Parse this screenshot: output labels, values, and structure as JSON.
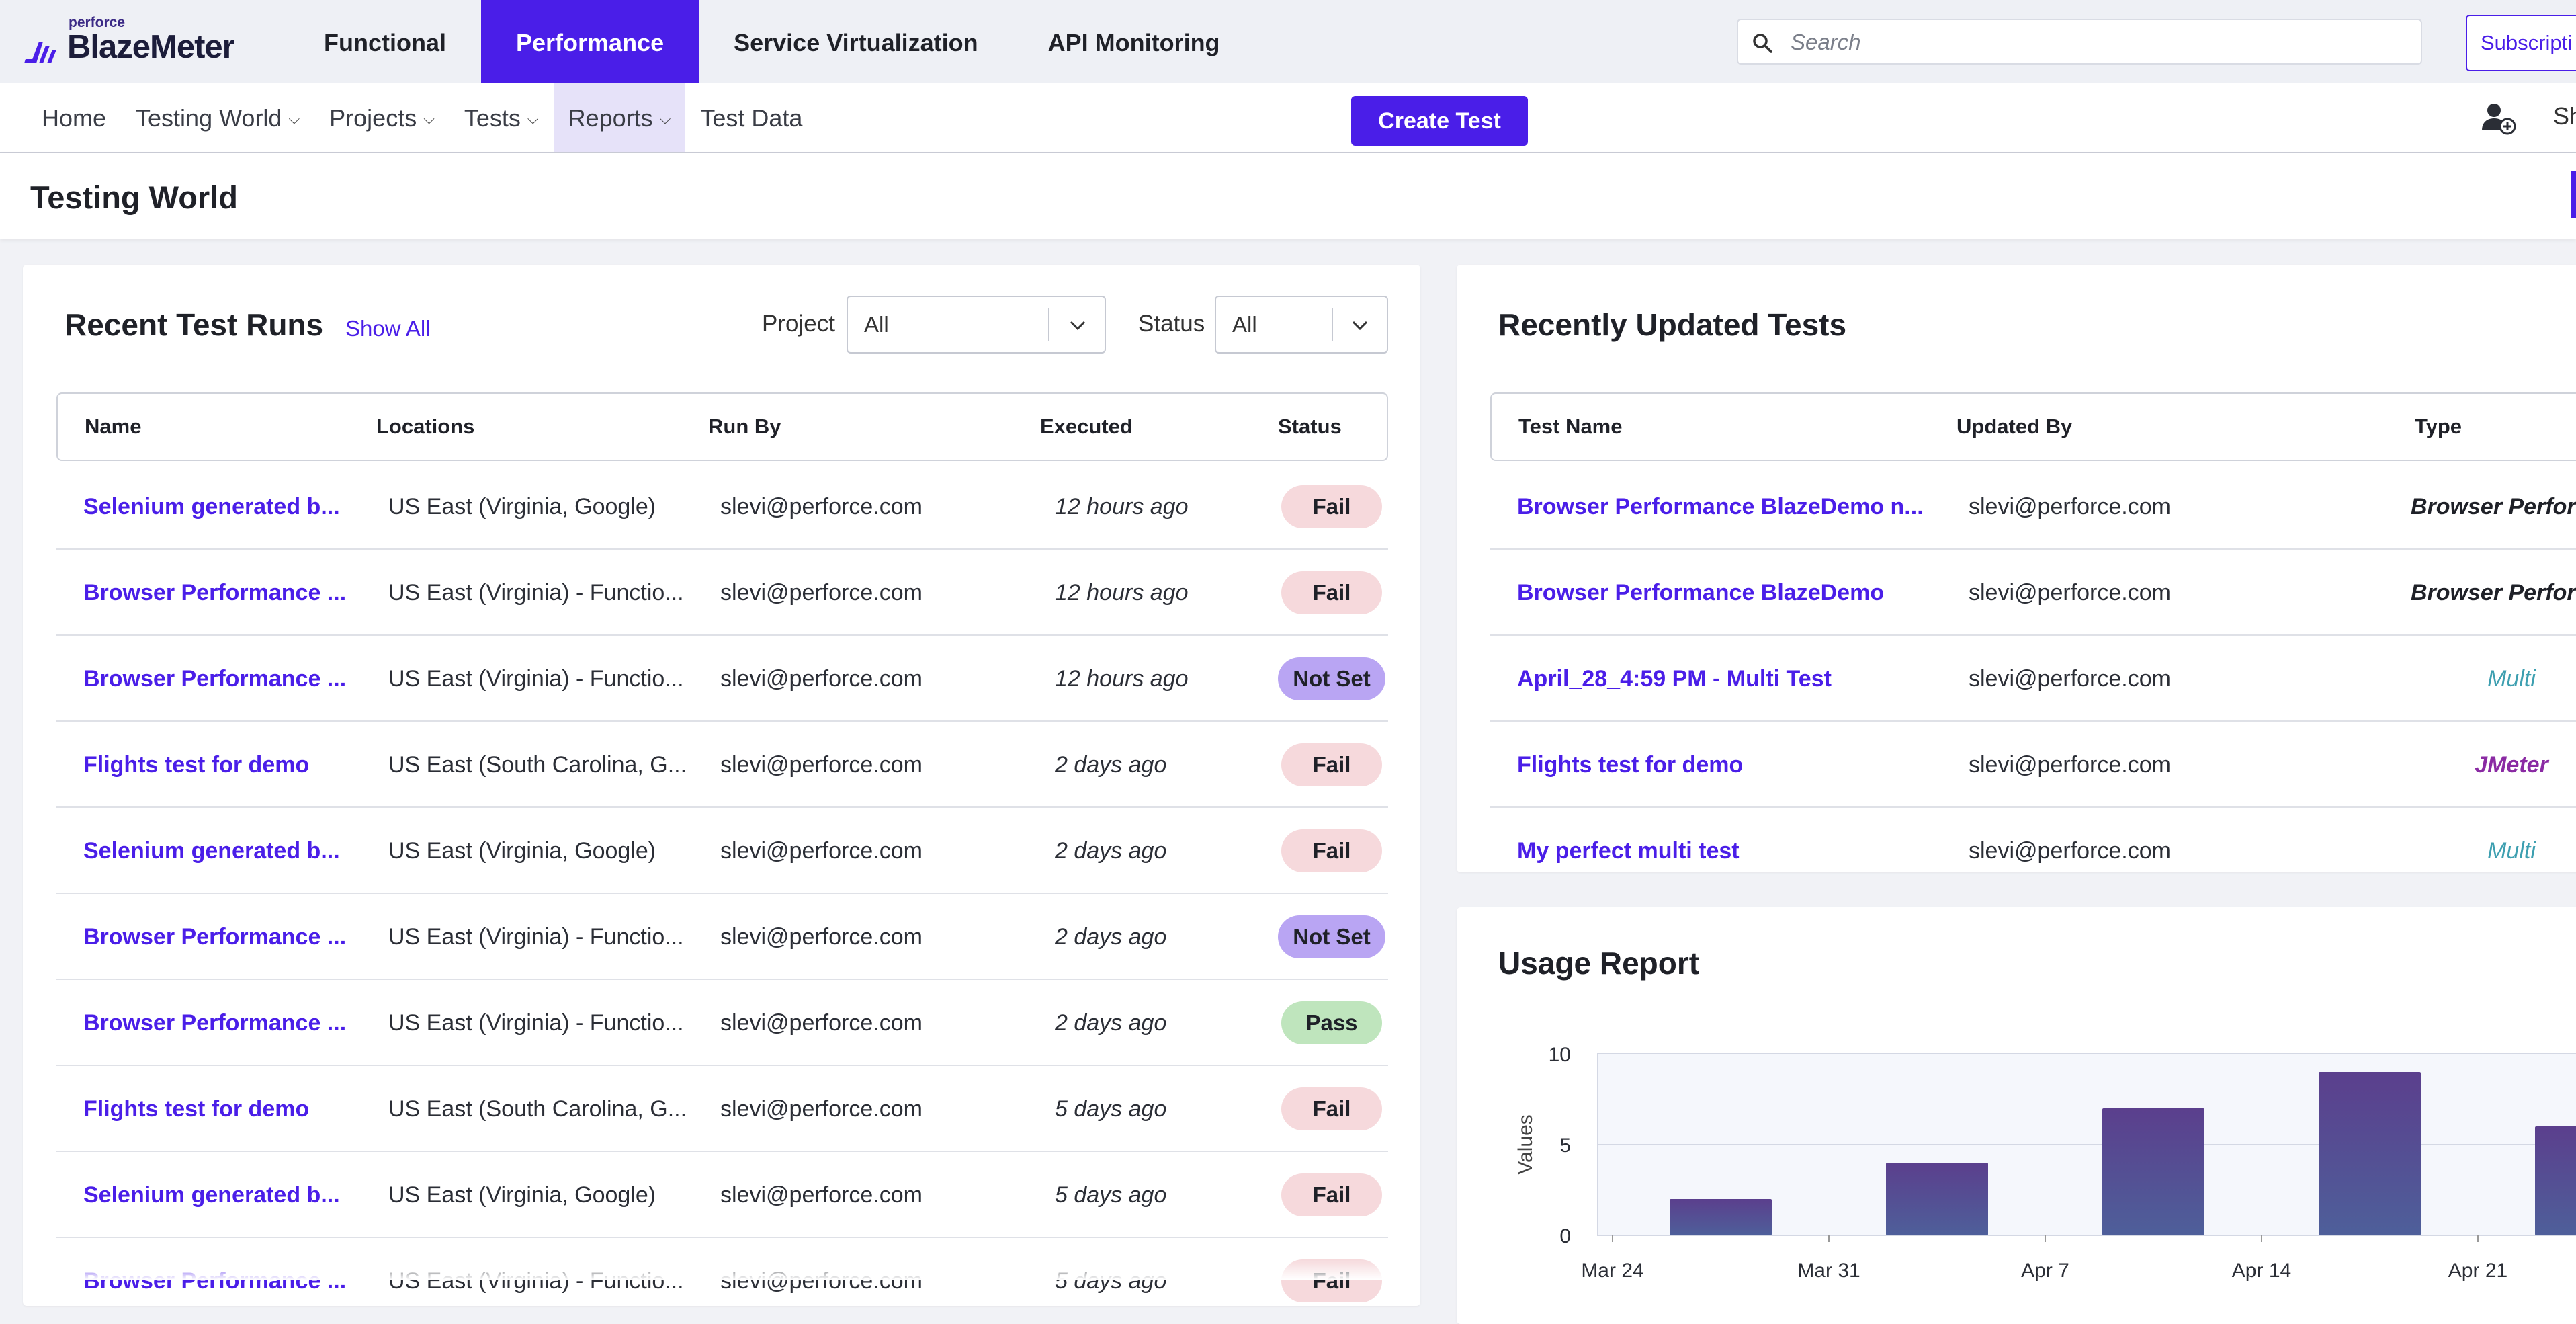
{
  "app": {
    "brand_small": "perforce",
    "brand": "BlazeMeter"
  },
  "main_nav": {
    "tabs": [
      {
        "label": "Functional",
        "active": false
      },
      {
        "label": "Performance",
        "active": true
      },
      {
        "label": "Service Virtualization",
        "active": false
      },
      {
        "label": "API Monitoring",
        "active": false
      }
    ]
  },
  "search": {
    "placeholder": "Search"
  },
  "subscribe_label": "Subscripti",
  "sub_nav": {
    "items": [
      {
        "label": "Home",
        "dropdown": false,
        "active": false
      },
      {
        "label": "Testing World",
        "dropdown": true,
        "active": false
      },
      {
        "label": "Projects",
        "dropdown": true,
        "active": false
      },
      {
        "label": "Tests",
        "dropdown": true,
        "active": false
      },
      {
        "label": "Reports",
        "dropdown": true,
        "active": true
      },
      {
        "label": "Test Data",
        "dropdown": false,
        "active": false
      }
    ],
    "create_test_label": "Create Test",
    "share_label": "Sh"
  },
  "page": {
    "title": "Testing World"
  },
  "recent_runs": {
    "title": "Recent Test Runs",
    "show_all": "Show All",
    "project_label": "Project",
    "project_value": "All",
    "status_label": "Status",
    "status_value": "All",
    "columns": [
      "Name",
      "Locations",
      "Run By",
      "Executed",
      "Status"
    ],
    "rows": [
      {
        "name": "Selenium generated b...",
        "location": "US East (Virginia, Google)",
        "run_by": "slevi@perforce.com",
        "executed": "12 hours ago",
        "status": "Fail"
      },
      {
        "name": "Browser Performance ...",
        "location": "US East (Virginia) - Functio...",
        "run_by": "slevi@perforce.com",
        "executed": "12 hours ago",
        "status": "Fail"
      },
      {
        "name": "Browser Performance ...",
        "location": "US East (Virginia) - Functio...",
        "run_by": "slevi@perforce.com",
        "executed": "12 hours ago",
        "status": "Not Set"
      },
      {
        "name": "Flights test for demo",
        "location": "US East (South Carolina, G...",
        "run_by": "slevi@perforce.com",
        "executed": "2 days ago",
        "status": "Fail"
      },
      {
        "name": "Selenium generated b...",
        "location": "US East (Virginia, Google)",
        "run_by": "slevi@perforce.com",
        "executed": "2 days ago",
        "status": "Fail"
      },
      {
        "name": "Browser Performance ...",
        "location": "US East (Virginia) - Functio...",
        "run_by": "slevi@perforce.com",
        "executed": "2 days ago",
        "status": "Not Set"
      },
      {
        "name": "Browser Performance ...",
        "location": "US East (Virginia) - Functio...",
        "run_by": "slevi@perforce.com",
        "executed": "2 days ago",
        "status": "Pass"
      },
      {
        "name": "Flights test for demo",
        "location": "US East (South Carolina, G...",
        "run_by": "slevi@perforce.com",
        "executed": "5 days ago",
        "status": "Fail"
      },
      {
        "name": "Selenium generated b...",
        "location": "US East (Virginia, Google)",
        "run_by": "slevi@perforce.com",
        "executed": "5 days ago",
        "status": "Fail"
      },
      {
        "name": "Browser Performance ...",
        "location": "US East (Virginia) - Functio...",
        "run_by": "slevi@perforce.com",
        "executed": "5 days ago",
        "status": "Fail"
      }
    ]
  },
  "recent_tests": {
    "title": "Recently Updated Tests",
    "columns": [
      "Test Name",
      "Updated By",
      "Type"
    ],
    "rows": [
      {
        "name": "Browser Performance BlazeDemo n...",
        "updated_by": "slevi@perforce.com",
        "type": "Browser Performance"
      },
      {
        "name": "Browser Performance BlazeDemo",
        "updated_by": "slevi@perforce.com",
        "type": "Browser Performance"
      },
      {
        "name": "April_28_4:59 PM - Multi Test",
        "updated_by": "slevi@perforce.com",
        "type": "Multi"
      },
      {
        "name": "Flights test for demo",
        "updated_by": "slevi@perforce.com",
        "type": "JMeter"
      },
      {
        "name": "My perfect multi test",
        "updated_by": "slevi@perforce.com",
        "type": "Multi"
      }
    ]
  },
  "usage_report": {
    "title": "Usage Report"
  },
  "chart_data": {
    "type": "bar",
    "title": "Usage Report",
    "ylabel": "Values",
    "xlabel": "",
    "ylim": [
      0,
      10
    ],
    "yticks": [
      0,
      5,
      10
    ],
    "xticks": [
      "Mar 24",
      "Mar 31",
      "Apr 7",
      "Apr 14",
      "Apr 21"
    ],
    "categories": [
      "Mar 27",
      "Apr 3",
      "Apr 10",
      "Apr 17",
      "Apr 24"
    ],
    "values": [
      2,
      4,
      7,
      9,
      6
    ],
    "grid": true,
    "bar_color": "#5a4f8e"
  },
  "colors": {
    "accent": "#4a1ee8",
    "fail": "#f6d9dc",
    "not_set": "#b9a5f3",
    "pass": "#bfe5bd"
  },
  "icons": {
    "search": "search-icon",
    "add_user": "add-user-icon",
    "chevron": "chevron-down-icon"
  }
}
